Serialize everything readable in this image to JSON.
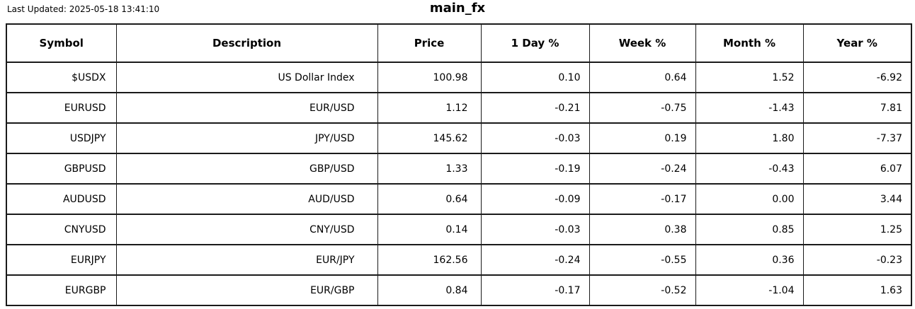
{
  "page": {
    "last_updated": "Last Updated: 2025-05-18 13:41:10",
    "title": "main_fx"
  },
  "colors": {
    "light_green": "#90EE90",
    "light_red": "#F08080",
    "dark_red": "#970000",
    "dark_green": "#046804",
    "border": "#1a1a1a",
    "background": "#ffffff",
    "text": "#000000"
  },
  "chart_data": {
    "type": "table",
    "title": "main_fx",
    "last_updated": "2025-05-18 13:41:10",
    "columns": [
      "Symbol",
      "Description",
      "Price",
      "1 Day %",
      "Week %",
      "Month %",
      "Year %"
    ],
    "rows": [
      {
        "symbol": "$USDX",
        "description": "US Dollar Index",
        "price": "100.98",
        "day": "0.10",
        "week": "0.64",
        "month": "1.52",
        "year": "-6.92",
        "highlights": {
          "day": "none",
          "week": "light_green",
          "month": "light_green",
          "year": "dark_red"
        }
      },
      {
        "symbol": "EURUSD",
        "description": "EUR/USD",
        "price": "1.12",
        "day": "-0.21",
        "week": "-0.75",
        "month": "-1.43",
        "year": "7.81",
        "highlights": {
          "day": "none",
          "week": "light_red",
          "month": "light_red",
          "year": "dark_green"
        }
      },
      {
        "symbol": "USDJPY",
        "description": "JPY/USD",
        "price": "145.62",
        "day": "-0.03",
        "week": "0.19",
        "month": "1.80",
        "year": "-7.37",
        "highlights": {
          "day": "none",
          "week": "none",
          "month": "light_green",
          "year": "dark_red"
        }
      },
      {
        "symbol": "GBPUSD",
        "description": "GBP/USD",
        "price": "1.33",
        "day": "-0.19",
        "week": "-0.24",
        "month": "-0.43",
        "year": "6.07",
        "highlights": {
          "day": "none",
          "week": "none",
          "month": "none",
          "year": "light_green"
        }
      },
      {
        "symbol": "AUDUSD",
        "description": "AUD/USD",
        "price": "0.64",
        "day": "-0.09",
        "week": "-0.17",
        "month": "0.00",
        "year": "3.44",
        "highlights": {
          "day": "none",
          "week": "none",
          "month": "none",
          "year": "light_green"
        }
      },
      {
        "symbol": "CNYUSD",
        "description": "CNY/USD",
        "price": "0.14",
        "day": "-0.03",
        "week": "0.38",
        "month": "0.85",
        "year": "1.25",
        "highlights": {
          "day": "none",
          "week": "light_green",
          "month": "light_green",
          "year": "none"
        }
      },
      {
        "symbol": "EURJPY",
        "description": "EUR/JPY",
        "price": "162.56",
        "day": "-0.24",
        "week": "-0.55",
        "month": "0.36",
        "year": "-0.23",
        "highlights": {
          "day": "none",
          "week": "none",
          "month": "none",
          "year": "none"
        }
      },
      {
        "symbol": "EURGBP",
        "description": "EUR/GBP",
        "price": "0.84",
        "day": "-0.17",
        "week": "-0.52",
        "month": "-1.04",
        "year": "1.63",
        "highlights": {
          "day": "none",
          "week": "light_red",
          "month": "light_red",
          "year": "none"
        }
      }
    ]
  }
}
